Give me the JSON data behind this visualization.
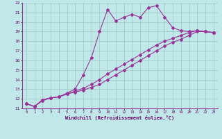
{
  "xlabel": "Windchill (Refroidissement éolien,°C)",
  "bg_color": "#c0e8e8",
  "grid_color": "#a0cccc",
  "line_color": "#993399",
  "xlim": [
    -0.5,
    23.5
  ],
  "ylim": [
    11,
    22
  ],
  "xticks": [
    0,
    1,
    2,
    3,
    4,
    5,
    6,
    7,
    8,
    9,
    10,
    11,
    12,
    13,
    14,
    15,
    16,
    17,
    18,
    19,
    20,
    21,
    22,
    23
  ],
  "yticks": [
    11,
    12,
    13,
    14,
    15,
    16,
    17,
    18,
    19,
    20,
    21,
    22
  ],
  "line1_x": [
    0,
    1,
    2,
    3,
    4,
    5,
    6,
    7,
    8,
    9,
    10,
    11,
    12,
    13,
    14,
    15,
    16,
    17,
    18,
    19,
    20,
    21,
    22,
    23
  ],
  "line1_y": [
    11.5,
    11.2,
    11.8,
    12.1,
    12.2,
    12.6,
    13.0,
    14.5,
    16.3,
    19.0,
    21.3,
    20.1,
    20.5,
    20.8,
    20.5,
    21.5,
    21.7,
    20.5,
    19.4,
    19.1,
    19.0,
    19.1,
    19.0,
    18.9
  ],
  "line2_x": [
    0,
    1,
    2,
    3,
    4,
    5,
    6,
    7,
    8,
    9,
    10,
    11,
    12,
    13,
    14,
    15,
    16,
    17,
    18,
    19,
    20,
    21,
    22,
    23
  ],
  "line2_y": [
    11.5,
    11.2,
    11.9,
    12.1,
    12.2,
    12.5,
    12.7,
    12.9,
    13.2,
    13.5,
    14.0,
    14.5,
    15.0,
    15.5,
    16.0,
    16.5,
    17.0,
    17.5,
    17.9,
    18.2,
    18.6,
    19.0,
    19.0,
    18.9
  ],
  "line3_x": [
    0,
    1,
    2,
    3,
    4,
    5,
    6,
    7,
    8,
    9,
    10,
    11,
    12,
    13,
    14,
    15,
    16,
    17,
    18,
    19,
    20,
    21,
    22,
    23
  ],
  "line3_y": [
    11.5,
    11.2,
    11.9,
    12.1,
    12.2,
    12.5,
    12.8,
    13.1,
    13.5,
    14.0,
    14.6,
    15.1,
    15.6,
    16.1,
    16.6,
    17.1,
    17.6,
    18.0,
    18.3,
    18.6,
    18.9,
    19.1,
    19.0,
    18.9
  ]
}
